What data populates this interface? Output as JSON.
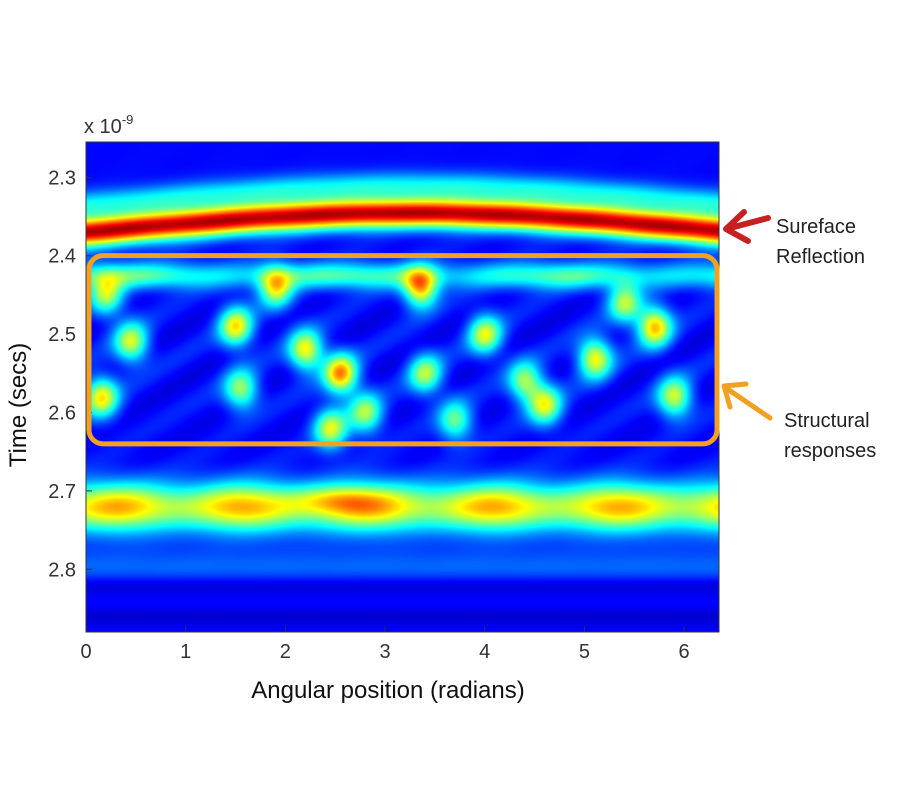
{
  "chart_data": {
    "type": "heatmap",
    "title": "",
    "xlabel": "Angular position (radians)",
    "ylabel": "Time (secs)",
    "y_multiplier": "x 10",
    "y_multiplier_exp": "-9",
    "xlim": [
      0,
      6.35
    ],
    "ylim": [
      2.88,
      2.255
    ],
    "x_ticks": [
      0,
      1,
      2,
      3,
      4,
      5,
      6
    ],
    "x_tick_labels": [
      "0",
      "1",
      "2",
      "3",
      "4",
      "5",
      "6"
    ],
    "y_ticks": [
      2.3,
      2.4,
      2.5,
      2.6,
      2.7,
      2.8
    ],
    "y_tick_labels": [
      "2.3",
      "2.4",
      "2.5",
      "2.6",
      "2.7",
      "2.8"
    ],
    "colormap": "jet",
    "grid": false,
    "bands": [
      {
        "feature": "surface reflection",
        "time_center": 2.365,
        "level": 0.93
      },
      {
        "feature": "structural responses",
        "time_range": [
          2.4,
          2.64
        ],
        "level": 0.35
      },
      {
        "feature": "lower band",
        "time_center": 2.72,
        "level": 0.6
      }
    ],
    "annotations": [
      {
        "lines": [
          "Sureface",
          "Reflection"
        ],
        "color": "#c62020"
      },
      {
        "lines": [
          "Structural",
          "responses"
        ],
        "color": "#f2a022",
        "box_time_range": [
          2.4,
          2.64
        ],
        "box_angle_range": [
          0,
          6.3
        ]
      }
    ]
  }
}
